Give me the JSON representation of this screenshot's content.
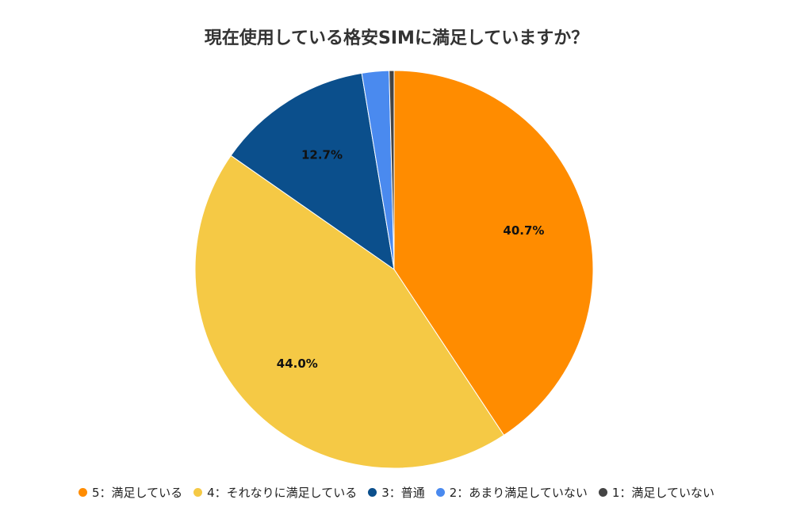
{
  "chart_data": {
    "type": "pie",
    "title": "現在使用している格安SIMに満足していますか？",
    "slices": [
      {
        "label": "5：満足している",
        "value": 40.7,
        "value_label": "40.7%",
        "color": "#ff8c00"
      },
      {
        "label": "4：それなりに満足している",
        "value": 44.0,
        "value_label": "44.0%",
        "color": "#f5c945"
      },
      {
        "label": "3：普通",
        "value": 12.7,
        "value_label": "12.7%",
        "color": "#0b4f8c"
      },
      {
        "label": "2：あまり満足していない",
        "value": 2.2,
        "value_label": "",
        "color": "#4a8aef"
      },
      {
        "label": "1：満足していない",
        "value": 0.4,
        "value_label": "",
        "color": "#444444"
      }
    ],
    "legend_position": "bottom"
  }
}
